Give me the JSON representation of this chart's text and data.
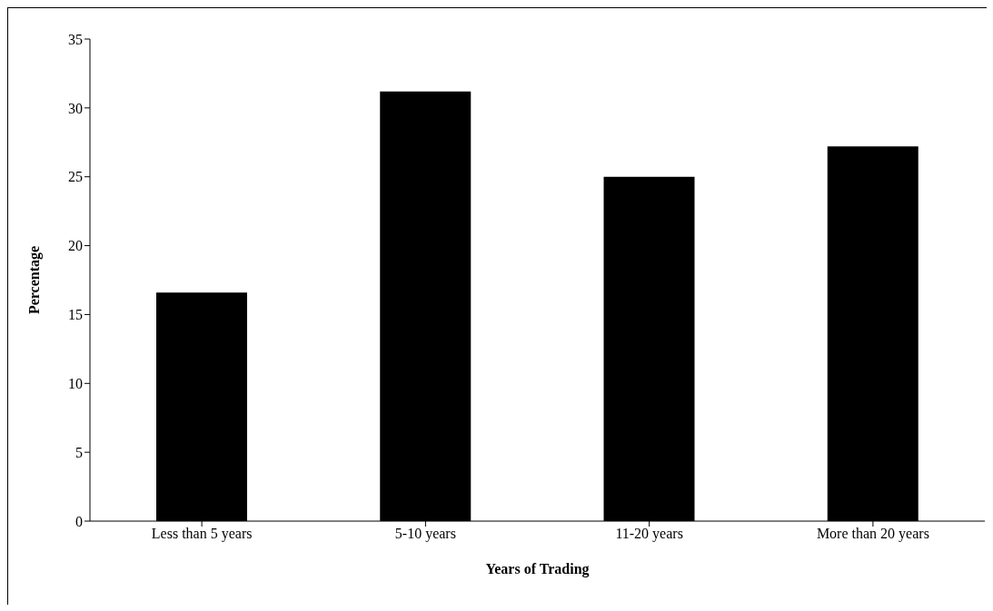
{
  "chart_data": {
    "type": "bar",
    "xlabel": "Years of Trading",
    "ylabel": "Percentage",
    "categories": [
      "Less than 5 years",
      "5-10 years",
      "11-20 years",
      "More than 20 years"
    ],
    "values": [
      16.6,
      31.2,
      25.0,
      27.2
    ],
    "color": "#000000",
    "ylim": [
      0,
      35
    ],
    "yticks": [
      0,
      5,
      10,
      15,
      20,
      25,
      30,
      35
    ],
    "grid": false,
    "legend": false
  }
}
